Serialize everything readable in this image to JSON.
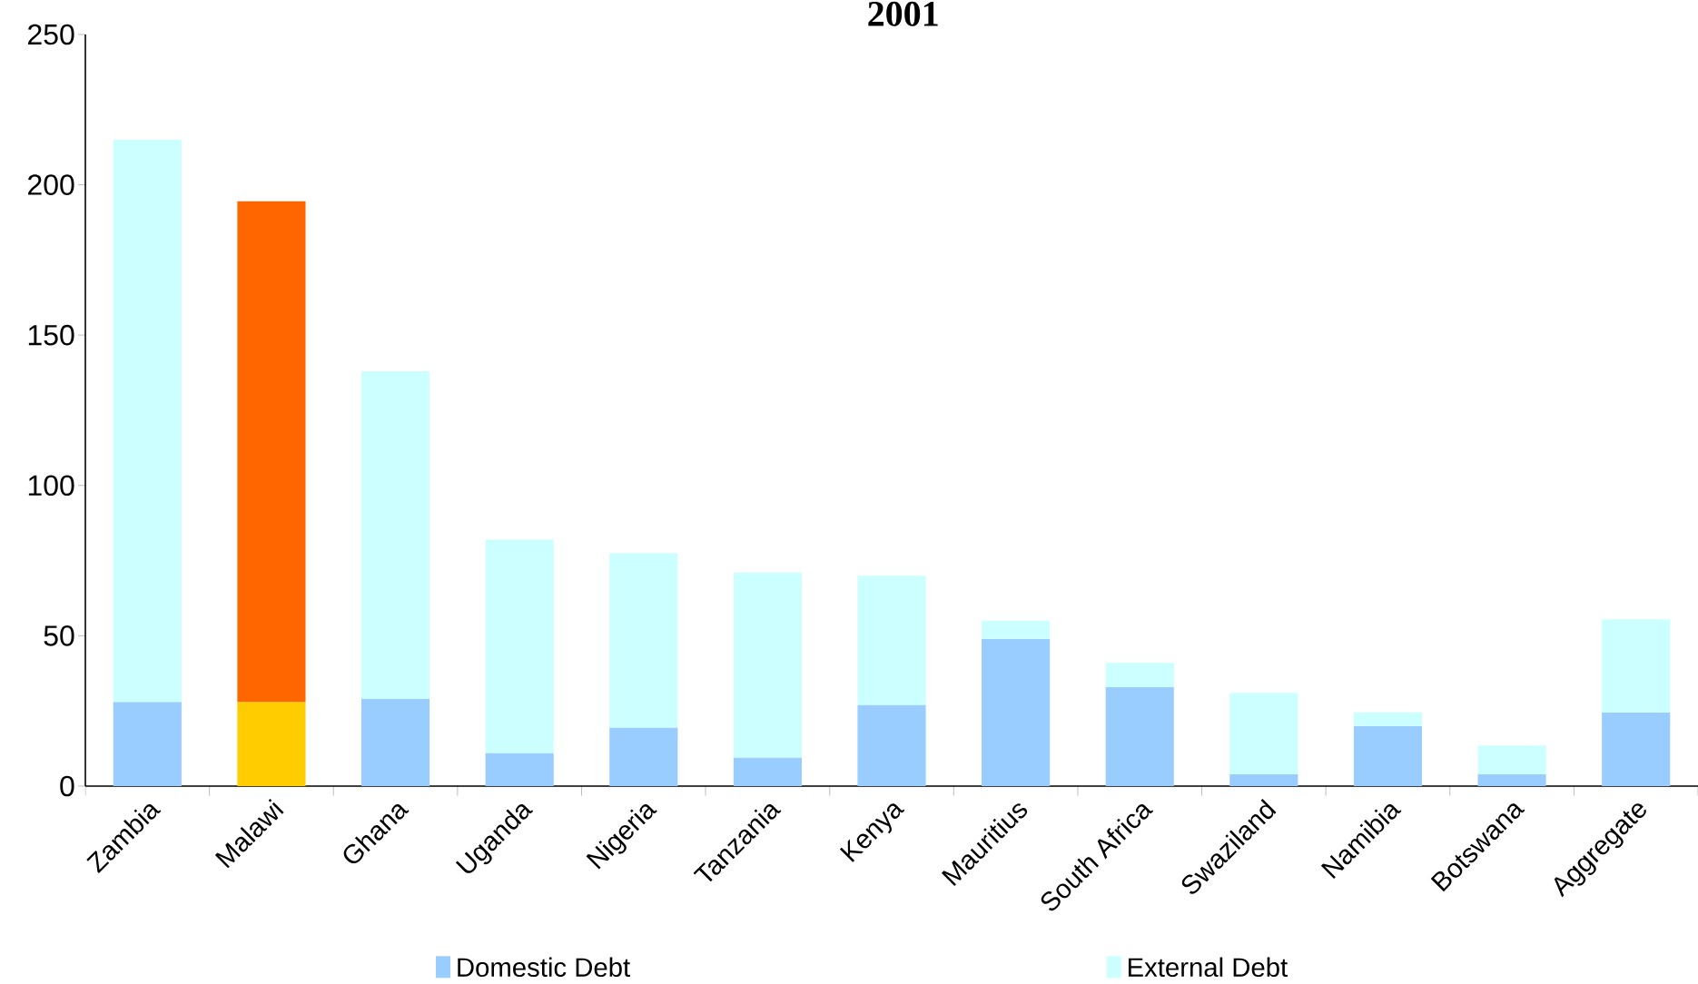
{
  "chart_data": {
    "type": "bar",
    "title": "2001",
    "categories": [
      "Zambia",
      "Malawi",
      "Ghana",
      "Uganda",
      "Nigeria",
      "Tanzania",
      "Kenya",
      "Mauritius",
      "South Africa",
      "Swaziland",
      "Namibia",
      "Botswana",
      "Aggregate"
    ],
    "stacked": true,
    "series": [
      {
        "name": "Domestic Debt",
        "color": "#99ccff",
        "colors": [
          "#99ccff",
          "#ffcc00",
          "#99ccff",
          "#99ccff",
          "#99ccff",
          "#99ccff",
          "#99ccff",
          "#99ccff",
          "#99ccff",
          "#99ccff",
          "#99ccff",
          "#99ccff",
          "#99ccff"
        ],
        "values": [
          28,
          28,
          29,
          11,
          19.5,
          9.5,
          27,
          49,
          33,
          4,
          20,
          4,
          24.5
        ]
      },
      {
        "name": "External Debt",
        "color": "#ccffff",
        "colors": [
          "#ccffff",
          "#ff6600",
          "#ccffff",
          "#ccffff",
          "#ccffff",
          "#ccffff",
          "#ccffff",
          "#ccffff",
          "#ccffff",
          "#ccffff",
          "#ccffff",
          "#ccffff",
          "#ccffff"
        ],
        "values": [
          187,
          166.5,
          109,
          71,
          58,
          61.5,
          43,
          6,
          8,
          27,
          4.5,
          9.5,
          31
        ]
      }
    ],
    "ylim": [
      0,
      250
    ],
    "yticks": [
      0,
      50,
      100,
      150,
      200,
      250
    ],
    "grid": false,
    "legend": "bottom"
  }
}
